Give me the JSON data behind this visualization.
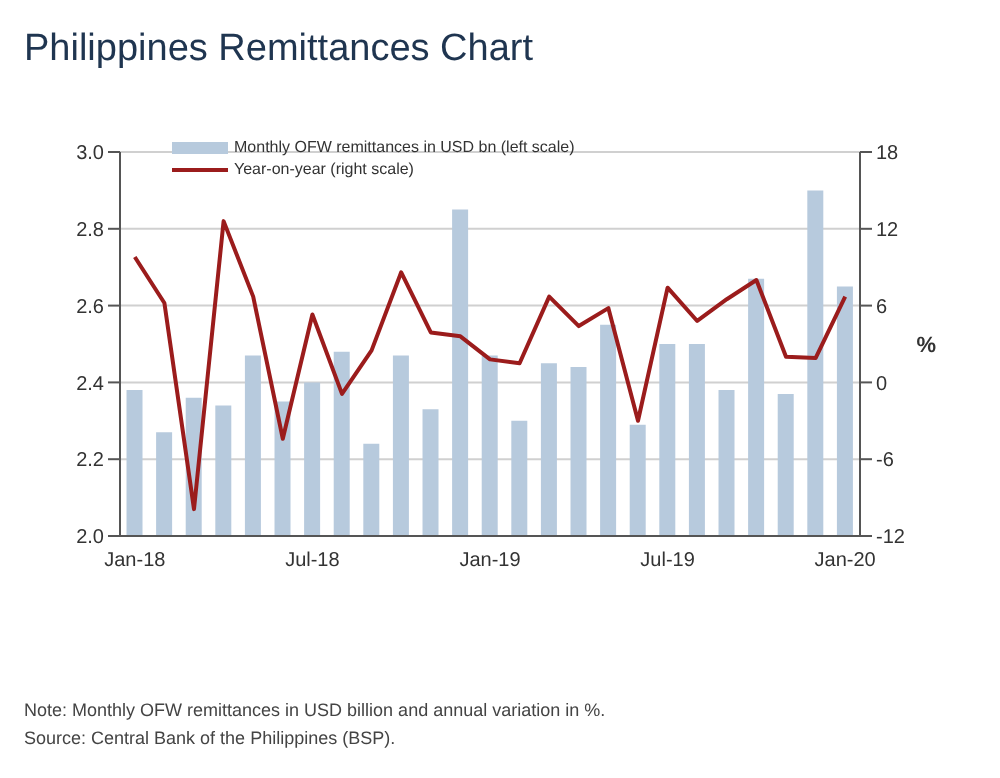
{
  "chart_data": {
    "type": "bar",
    "title": "Philippines Remittances Chart",
    "categories": [
      "Jan-18",
      null,
      null,
      null,
      null,
      null,
      "Jul-18",
      null,
      null,
      null,
      null,
      null,
      "Jan-19",
      null,
      null,
      null,
      null,
      null,
      "Jul-19",
      null,
      null,
      null,
      null,
      null,
      "Jan-20"
    ],
    "series": [
      {
        "name": "Monthly OFW remittances in USD bn (left scale)",
        "color": "#b7cadd",
        "values": [
          2.38,
          2.27,
          2.36,
          2.34,
          2.47,
          2.35,
          2.4,
          2.48,
          2.24,
          2.47,
          2.33,
          2.85,
          2.47,
          2.3,
          2.45,
          2.44,
          2.55,
          2.29,
          2.5,
          2.5,
          2.38,
          2.67,
          2.37,
          2.9,
          2.65
        ]
      },
      {
        "name": "Year-on-year (right scale)",
        "type": "line",
        "axis": "y2",
        "color": "#9b1c1c",
        "values": [
          9.8,
          6.2,
          -9.9,
          12.6,
          6.7,
          -4.4,
          5.3,
          -0.9,
          2.5,
          8.6,
          3.9,
          3.6,
          1.8,
          1.5,
          6.7,
          4.4,
          5.8,
          -3.0,
          7.4,
          4.8,
          6.5,
          8.0,
          2.0,
          1.9,
          6.7
        ]
      }
    ],
    "ylim": [
      2.0,
      3.0
    ],
    "yticks": [
      {
        "value": 2.0,
        "label": "2.0"
      },
      {
        "value": 2.2,
        "label": "2.2"
      },
      {
        "value": 2.4,
        "label": "2.4"
      },
      {
        "value": 2.6,
        "label": "2.6"
      },
      {
        "value": 2.8,
        "label": "2.8"
      },
      {
        "value": 3.0,
        "label": "3.0"
      }
    ],
    "y2lim": [
      -12,
      18
    ],
    "y2ticks": [
      -12,
      -6,
      0,
      6,
      12,
      18
    ],
    "y2label": "%",
    "grid": "y",
    "legend": "top left",
    "annotations": [
      "Note: Monthly OFW remittances in USD billion and annual variation in %.",
      "Source: Central Bank of the Philippines (BSP)."
    ]
  }
}
